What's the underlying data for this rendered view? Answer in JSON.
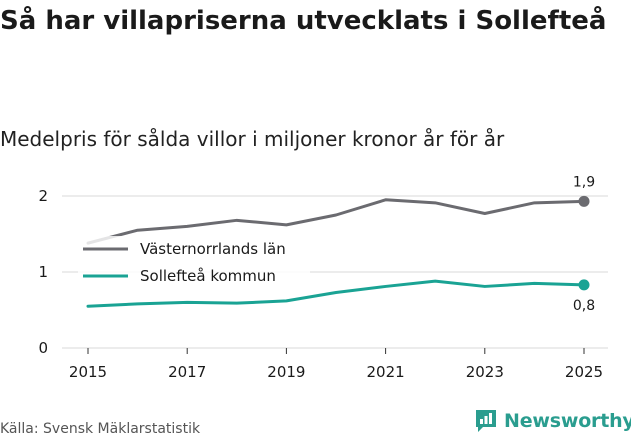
{
  "title": "Så har villapriserna utvecklats i Sollefteå",
  "subtitle": "Medelpris för sålda villor i miljoner kronor år för år",
  "source": "Källa: Svensk Mäklarstatistik",
  "brand": "Newsworthy",
  "chart_data": {
    "type": "line",
    "x": [
      2015,
      2016,
      2017,
      2018,
      2019,
      2020,
      2021,
      2022,
      2023,
      2024,
      2025
    ],
    "xticks": [
      "2015",
      "2017",
      "2019",
      "2021",
      "2023",
      "2025"
    ],
    "yticks": [
      "0",
      "1",
      "2"
    ],
    "ylim": [
      0,
      2
    ],
    "series": [
      {
        "name": "Västernorrlands län",
        "color": "#6b6b70",
        "values": [
          1.38,
          1.55,
          1.6,
          1.68,
          1.62,
          1.75,
          1.95,
          1.91,
          1.77,
          1.91,
          1.93
        ],
        "end_label": "1,9"
      },
      {
        "name": "Sollefteå kommun",
        "color": "#1aa394",
        "values": [
          0.55,
          0.58,
          0.6,
          0.59,
          0.62,
          0.73,
          0.81,
          0.88,
          0.81,
          0.85,
          0.83
        ],
        "end_label": "0,8"
      }
    ]
  }
}
